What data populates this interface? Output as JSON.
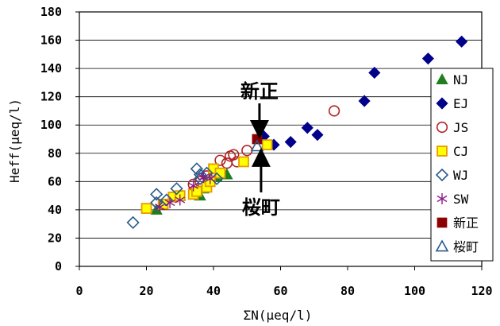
{
  "chart_data": {
    "type": "scatter",
    "xlabel": "ΣN(μeq/l)",
    "ylabel": "Heff(μeq/l)",
    "xlim": [
      0,
      120
    ],
    "ylim": [
      0,
      180
    ],
    "xticks": [
      0,
      20,
      40,
      60,
      80,
      100,
      120
    ],
    "yticks": [
      0,
      20,
      40,
      60,
      80,
      100,
      120,
      140,
      160,
      180
    ],
    "grid": "horizontal",
    "legend_position": "right",
    "series": [
      {
        "name": "NJ",
        "marker": "triangle",
        "color": "#1f7f1f",
        "filled": true,
        "points": [
          [
            23,
            40
          ],
          [
            30,
            50
          ],
          [
            36,
            50
          ],
          [
            37,
            55
          ],
          [
            44,
            65
          ],
          [
            38,
            60
          ],
          [
            41,
            63
          ]
        ]
      },
      {
        "name": "EJ",
        "marker": "diamond",
        "color": "#00008b",
        "filled": true,
        "points": [
          [
            55,
            92
          ],
          [
            58,
            86
          ],
          [
            63,
            88
          ],
          [
            68,
            98
          ],
          [
            71,
            93
          ],
          [
            85,
            117
          ],
          [
            88,
            137
          ],
          [
            104,
            147
          ],
          [
            114,
            159
          ]
        ]
      },
      {
        "name": "JS",
        "marker": "circle",
        "color": "#b22222",
        "filled": false,
        "points": [
          [
            34,
            58
          ],
          [
            36,
            60
          ],
          [
            38,
            64
          ],
          [
            40,
            66
          ],
          [
            42,
            75
          ],
          [
            44,
            73
          ],
          [
            45,
            78
          ],
          [
            46,
            79
          ],
          [
            47,
            74
          ],
          [
            50,
            82
          ],
          [
            76,
            110
          ]
        ]
      },
      {
        "name": "CJ",
        "marker": "square",
        "color": "#d4a400",
        "filled": true,
        "points": [
          [
            20,
            41
          ],
          [
            25,
            44
          ],
          [
            28,
            49
          ],
          [
            30,
            50
          ],
          [
            34,
            51
          ],
          [
            35,
            53
          ],
          [
            38,
            56
          ],
          [
            39,
            60
          ],
          [
            40,
            69
          ],
          [
            42,
            66
          ],
          [
            49,
            74
          ],
          [
            56,
            86
          ]
        ]
      },
      {
        "name": "WJ",
        "marker": "diamond",
        "color": "#2a5a8a",
        "filled": false,
        "points": [
          [
            16,
            31
          ],
          [
            23,
            45
          ],
          [
            23,
            51
          ],
          [
            26,
            47
          ],
          [
            29,
            55
          ],
          [
            35,
            69
          ],
          [
            36,
            62
          ],
          [
            36,
            65
          ],
          [
            38,
            66
          ],
          [
            41,
            62
          ]
        ]
      },
      {
        "name": "SW",
        "marker": "star",
        "color": "#8b1a8b",
        "filled": false,
        "points": [
          [
            24,
            42
          ],
          [
            27,
            45
          ],
          [
            30,
            47
          ],
          [
            34,
            57
          ],
          [
            37,
            63
          ],
          [
            39,
            62
          ]
        ]
      },
      {
        "name": "新正",
        "marker": "square",
        "color": "#8b0000",
        "filled": true,
        "points": [
          [
            53,
            90
          ]
        ]
      },
      {
        "name": "桜町",
        "marker": "triangle",
        "color": "#2a5a8a",
        "filled": false,
        "points": [
          [
            53,
            85
          ]
        ]
      }
    ],
    "annotations": [
      {
        "text": "新正",
        "target": [
          53,
          90
        ],
        "direction": "down"
      },
      {
        "text": "桜町",
        "target": [
          53,
          85
        ],
        "direction": "up"
      }
    ]
  }
}
